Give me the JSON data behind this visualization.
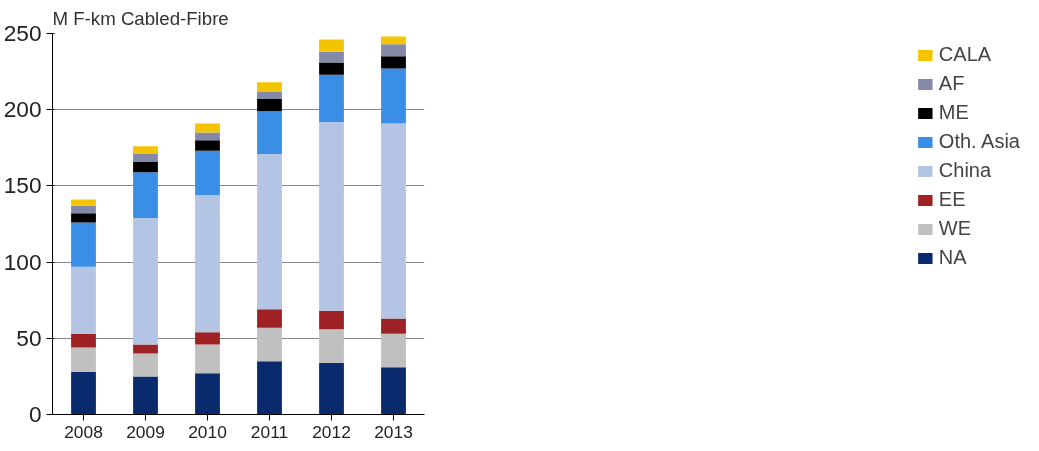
{
  "chart_data": {
    "type": "bar",
    "stacked": true,
    "ylabel": "M F-km Cabled-Fibre",
    "categories": [
      "2008",
      "2009",
      "2010",
      "2011",
      "2012",
      "2013"
    ],
    "series": [
      {
        "name": "NA",
        "color": "#0a2a6e",
        "values": [
          28,
          25,
          27,
          35,
          34,
          31
        ]
      },
      {
        "name": "WE",
        "color": "#c0c0c0",
        "values": [
          16,
          15,
          19,
          22,
          22,
          22
        ]
      },
      {
        "name": "EE",
        "color": "#9e2224",
        "values": [
          9,
          6,
          8,
          12,
          12,
          10
        ]
      },
      {
        "name": "China",
        "color": "#b4c4e4",
        "values": [
          44,
          83,
          90,
          102,
          124,
          128
        ]
      },
      {
        "name": "Oth. Asia",
        "color": "#3a8ee6",
        "values": [
          29,
          30,
          29,
          28,
          31,
          36
        ]
      },
      {
        "name": "ME",
        "color": "#000000",
        "values": [
          6,
          7,
          7,
          8,
          8,
          8
        ]
      },
      {
        "name": "AF",
        "color": "#8489a8",
        "values": [
          5,
          5,
          5,
          5,
          7,
          8
        ]
      },
      {
        "name": "CALA",
        "color": "#f5c400",
        "values": [
          4,
          5,
          6,
          6,
          8,
          5
        ]
      }
    ],
    "ylim": [
      0,
      250
    ],
    "yticks": [
      0,
      50,
      100,
      150,
      200,
      250
    ],
    "grid": "y",
    "legend": "right"
  }
}
